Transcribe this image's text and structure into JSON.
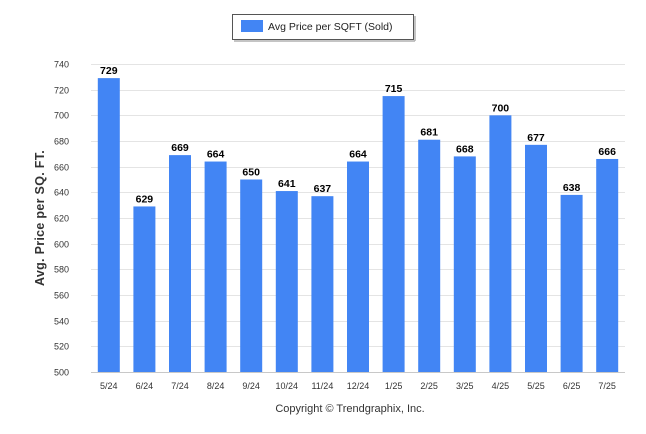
{
  "chart_data": {
    "type": "bar",
    "categories": [
      "5/24",
      "6/24",
      "7/24",
      "8/24",
      "9/24",
      "10/24",
      "11/24",
      "12/24",
      "1/25",
      "2/25",
      "3/25",
      "4/25",
      "5/25",
      "6/25",
      "7/25"
    ],
    "series": [
      {
        "name": "Avg Price per SQFT (Sold)",
        "values": [
          729,
          629,
          669,
          664,
          650,
          641,
          637,
          664,
          715,
          681,
          668,
          700,
          677,
          638,
          666
        ]
      }
    ],
    "ylabel": "Avg. Price per SQ. FT.",
    "xlabel": "",
    "ylim": [
      500,
      740
    ],
    "yticks": [
      500,
      520,
      540,
      560,
      580,
      600,
      620,
      640,
      660,
      680,
      700,
      720,
      740
    ],
    "grid": true,
    "legend_position": "top-center",
    "bar_color": "#4285f4",
    "data_labels": true
  },
  "credit": "Copyright © Trendgraphix, Inc."
}
